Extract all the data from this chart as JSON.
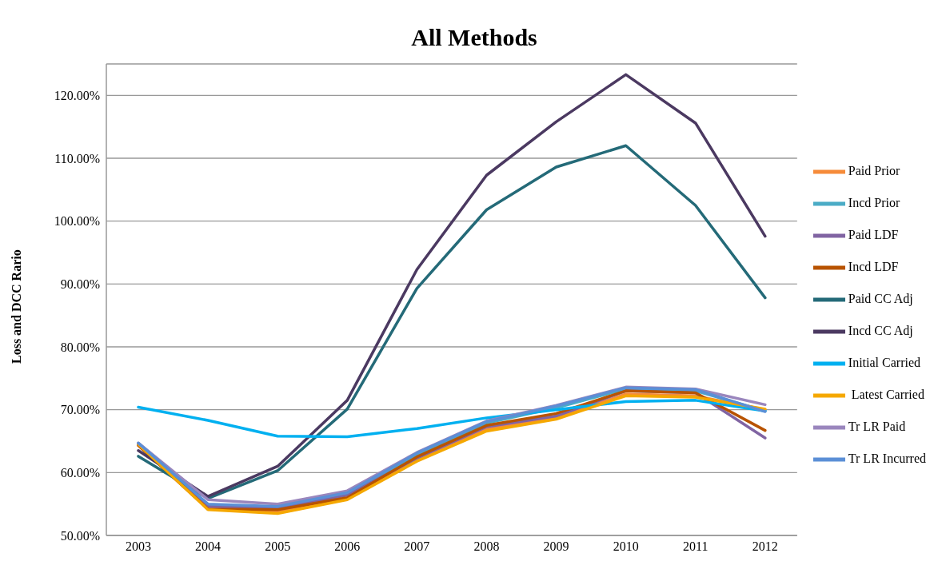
{
  "chart_data": {
    "type": "line",
    "title": "All Methods",
    "ylabel": "Loss and DCC Rario",
    "categories": [
      "2003",
      "2004",
      "2005",
      "2006",
      "2007",
      "2008",
      "2009",
      "2010",
      "2011",
      "2012"
    ],
    "ylim": [
      50,
      125
    ],
    "yticks": [
      {
        "value": 50,
        "label": "50.00%"
      },
      {
        "value": 60,
        "label": "60.00%"
      },
      {
        "value": 70,
        "label": "70.00%"
      },
      {
        "value": 80,
        "label": "80.00%"
      },
      {
        "value": 90,
        "label": "90.00%"
      },
      {
        "value": 100,
        "label": "100.00%"
      },
      {
        "value": 110,
        "label": "110.00%"
      },
      {
        "value": 120,
        "label": "120.00%"
      }
    ],
    "grid": "y",
    "legend": "right",
    "marker": "none",
    "line_style": "solid",
    "series": [
      {
        "name": "Paid Prior",
        "color": "#f68b3a",
        "values": [
          64.4,
          54.2,
          53.8,
          55.9,
          62.0,
          66.9,
          68.7,
          72.5,
          72.2,
          70.0
        ]
      },
      {
        "name": "Incd Prior",
        "color": "#4bacc6",
        "values": [
          64.6,
          54.8,
          54.4,
          56.6,
          62.9,
          67.9,
          70.3,
          73.3,
          73.0,
          69.8
        ]
      },
      {
        "name": "Paid LDF",
        "color": "#8064a2",
        "values": [
          64.5,
          54.6,
          54.3,
          56.4,
          62.3,
          67.3,
          69.0,
          73.0,
          72.7,
          65.5
        ]
      },
      {
        "name": "Incd LDF",
        "color": "#b85300",
        "values": [
          64.3,
          54.2,
          54.1,
          56.0,
          62.5,
          67.5,
          69.4,
          73.0,
          72.7,
          66.7
        ]
      },
      {
        "name": "Paid CC Adj",
        "color": "#246a78",
        "values": [
          62.6,
          55.9,
          60.3,
          70.1,
          89.3,
          101.8,
          108.6,
          112.0,
          102.5,
          87.8
        ]
      },
      {
        "name": "Incd CC Adj",
        "color": "#4b3961",
        "values": [
          63.5,
          56.2,
          61.0,
          71.5,
          92.3,
          107.3,
          115.8,
          123.3,
          115.6,
          97.6
        ]
      },
      {
        "name": "Initial Carried",
        "color": "#00b0f0",
        "values": [
          70.4,
          68.3,
          65.8,
          65.7,
          67.0,
          68.7,
          70.0,
          71.3,
          71.5,
          69.8
        ]
      },
      {
        "name": " Latest Carried",
        "color": "#f5a800",
        "values": [
          64.5,
          54.1,
          53.5,
          55.7,
          61.8,
          66.6,
          68.5,
          72.2,
          72.0,
          70.1
        ]
      },
      {
        "name": "Tr LR Paid",
        "color": "#9a86bd",
        "values": [
          64.7,
          55.7,
          55.0,
          57.1,
          63.2,
          68.2,
          70.7,
          73.6,
          73.3,
          70.8
        ]
      },
      {
        "name": "Tr LR Incurred",
        "color": "#5b8fd6",
        "values": [
          64.7,
          55.0,
          54.6,
          56.8,
          63.1,
          68.1,
          70.6,
          73.5,
          73.2,
          69.7
        ]
      }
    ]
  }
}
